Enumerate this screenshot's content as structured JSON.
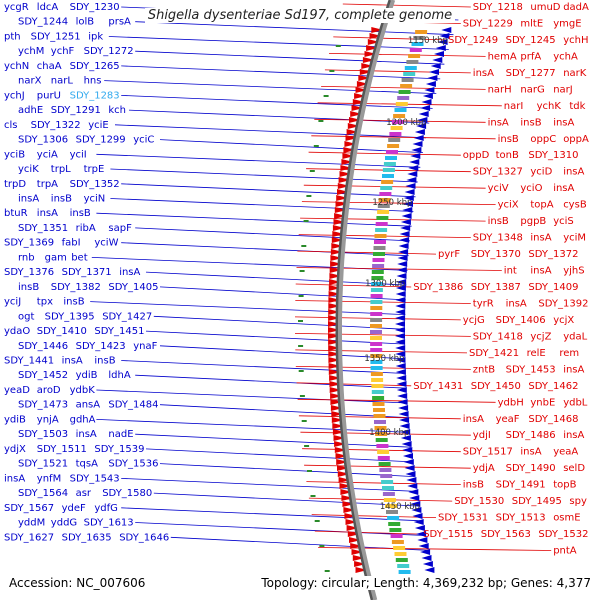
{
  "title": "Shigella dysenteriae Sd197, complete genome",
  "accession": "Accession: NC_007606",
  "summary": "Topology: circular; Length: 4,369,232 bp; Genes: 4,377",
  "colors": {
    "forward": "#0000cc",
    "reverse": "#e00000",
    "highlight": "#33aaee",
    "backbone": "#999999",
    "ticks": "#2a8a2a"
  },
  "kbp_labels": [
    "1150 kbp",
    "1200 kbp",
    "1250 kbp",
    "1300 kbp",
    "1350 kbp",
    "1400 kbp",
    "1450 kbp"
  ],
  "left_labels": [
    "ycgR",
    "ldcA",
    "SDY_1230",
    "SDY_1244",
    "lolB",
    "prsA",
    "pth",
    "SDY_1251",
    "ipk",
    "ychM",
    "ychF",
    "SDY_1272",
    "ychN",
    "chaA",
    "SDY_1265",
    "narX",
    "narL",
    "hns",
    "ychJ",
    "purU",
    "SDY_1283",
    "adhE",
    "SDY_1291",
    "kch",
    "cls",
    "SDY_1322",
    "yciE",
    "SDY_1306",
    "SDY_1299",
    "yciC",
    "yciB",
    "yciA",
    "yciI",
    "yciK",
    "trpL",
    "trpE",
    "trpD",
    "trpA",
    "SDY_1352",
    "insA",
    "insB",
    "yciN",
    "btuR",
    "insA",
    "insB",
    "SDY_1351",
    "ribA",
    "sapF",
    "SDY_1369",
    "fabI",
    "yciW",
    "rnb",
    "gam",
    "bet",
    "SDY_1376",
    "SDY_1371",
    "insA",
    "insB",
    "SDY_1382",
    "SDY_1405",
    "yciJ",
    "tpx",
    "insB",
    "ogt",
    "SDY_1395",
    "SDY_1427",
    "ydaO",
    "SDY_1410",
    "SDY_1451",
    "SDY_1446",
    "SDY_1423",
    "ynaF",
    "SDY_1441",
    "insA",
    "insB",
    "SDY_1452",
    "ydiB",
    "ldhA",
    "yeaD",
    "aroD",
    "ydbK",
    "SDY_1473",
    "ansA",
    "SDY_1484",
    "ydiB",
    "ynjA",
    "gdhA",
    "SDY_1503",
    "insA",
    "nadE",
    "ydjX",
    "SDY_1511",
    "SDY_1539",
    "SDY_1521",
    "tqsA",
    "SDY_1536",
    "insA",
    "ynfM",
    "SDY_1543",
    "SDY_1564",
    "asr",
    "SDY_1580",
    "SDY_1567",
    "ydeF",
    "ydfG",
    "yddM",
    "yddG",
    "SDY_1613",
    "SDY_1627",
    "SDY_1635",
    "SDY_1646"
  ],
  "right_labels": [
    "SDY_1218",
    "umuD",
    "dadA",
    "SDY_1229",
    "mltE",
    "ymgE",
    "SDY_1249",
    "SDY_1245",
    "ychH",
    "hemA",
    "prfA",
    "ychA",
    "insA",
    "SDY_1277",
    "narK",
    "narH",
    "narG",
    "narJ",
    "narI",
    "ychK",
    "tdk",
    "insA",
    "insB",
    "insA",
    "insB",
    "oppC",
    "oppA",
    "oppD",
    "tonB",
    "SDY_1310",
    "SDY_1327",
    "yciD",
    "insA",
    "yciV",
    "yciO",
    "insA",
    "yciX",
    "topA",
    "cysB",
    "insB",
    "pgpB",
    "yciS",
    "SDY_1348",
    "insA",
    "yciM",
    "pyrF",
    "SDY_1370",
    "SDY_1372",
    "int",
    "insA",
    "yjhS",
    "SDY_1386",
    "SDY_1387",
    "SDY_1409",
    "tyrR",
    "insA",
    "SDY_1392",
    "ycjG",
    "SDY_1406",
    "ycjX",
    "SDY_1418",
    "ycjZ",
    "ydaL",
    "SDY_1421",
    "relE",
    "rem",
    "zntB",
    "SDY_1453",
    "insA",
    "SDY_1431",
    "SDY_1450",
    "SDY_1462",
    "ydbH",
    "ynbE",
    "ydbL",
    "insA",
    "yeaF",
    "SDY_1468",
    "ydjI",
    "SDY_1486",
    "insA",
    "SDY_1517",
    "insA",
    "yeaA",
    "ydjA",
    "SDY_1490",
    "selD",
    "insB",
    "SDY_1491",
    "topB",
    "SDY_1530",
    "SDY_1495",
    "spy",
    "SDY_1531",
    "SDY_1513",
    "osmE",
    "SDY_1515",
    "SDY_1563",
    "SDY_1532",
    "pntA"
  ]
}
